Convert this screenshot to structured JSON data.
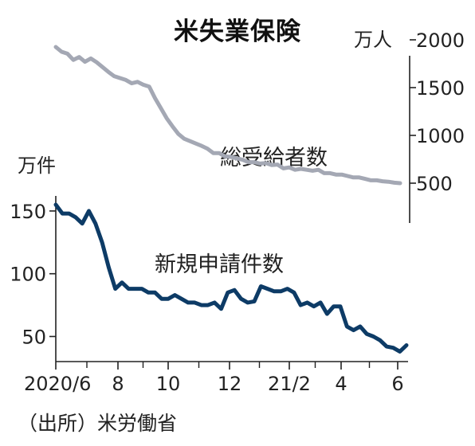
{
  "title": "米失業保険",
  "source": "（出所）米労働省",
  "chart_data": [
    {
      "type": "line",
      "name": "total_benefits",
      "series": [
        {
          "name": "総受給者数",
          "color": "#a4a8b4",
          "values": [
            1925,
            1875,
            1855,
            1790,
            1820,
            1770,
            1805,
            1765,
            1715,
            1665,
            1620,
            1600,
            1580,
            1545,
            1560,
            1530,
            1510,
            1390,
            1285,
            1180,
            1095,
            1015,
            965,
            940,
            915,
            890,
            860,
            815,
            815,
            780,
            775,
            760,
            745,
            720,
            720,
            705,
            710,
            690,
            695,
            655,
            665,
            640,
            650,
            640,
            630,
            640,
            605,
            605,
            590,
            590,
            575,
            560,
            560,
            545,
            530,
            530,
            520,
            515,
            505,
            500
          ]
        }
      ],
      "x_range": [
        "2020/6",
        "2021/6"
      ],
      "y_ticks": [
        "500",
        "1000",
        "1500",
        "2000"
      ],
      "y_unit": "万人",
      "ylim": [
        300,
        2000
      ],
      "axis_side": "right"
    },
    {
      "type": "line",
      "name": "new_claims",
      "series": [
        {
          "name": "新規申請件数",
          "color": "#0d3b66",
          "values": [
            155,
            148,
            148,
            145,
            140,
            150,
            140,
            125,
            105,
            88,
            93,
            88,
            88,
            88,
            85,
            85,
            80,
            80,
            83,
            80,
            77,
            77,
            75,
            75,
            77,
            72,
            85,
            87,
            80,
            77,
            78,
            90,
            88,
            86,
            86,
            88,
            85,
            75,
            77,
            74,
            77,
            68,
            74,
            74,
            58,
            55,
            58,
            52,
            50,
            47,
            42,
            41,
            38,
            43
          ]
        }
      ],
      "x_ticks": [
        "2020/6",
        "8",
        "10",
        "12",
        "21/2",
        "4",
        "6"
      ],
      "y_ticks": [
        "50",
        "100",
        "150"
      ],
      "y_unit": "万件",
      "ylim": [
        30,
        162
      ],
      "axis_side": "left"
    }
  ]
}
